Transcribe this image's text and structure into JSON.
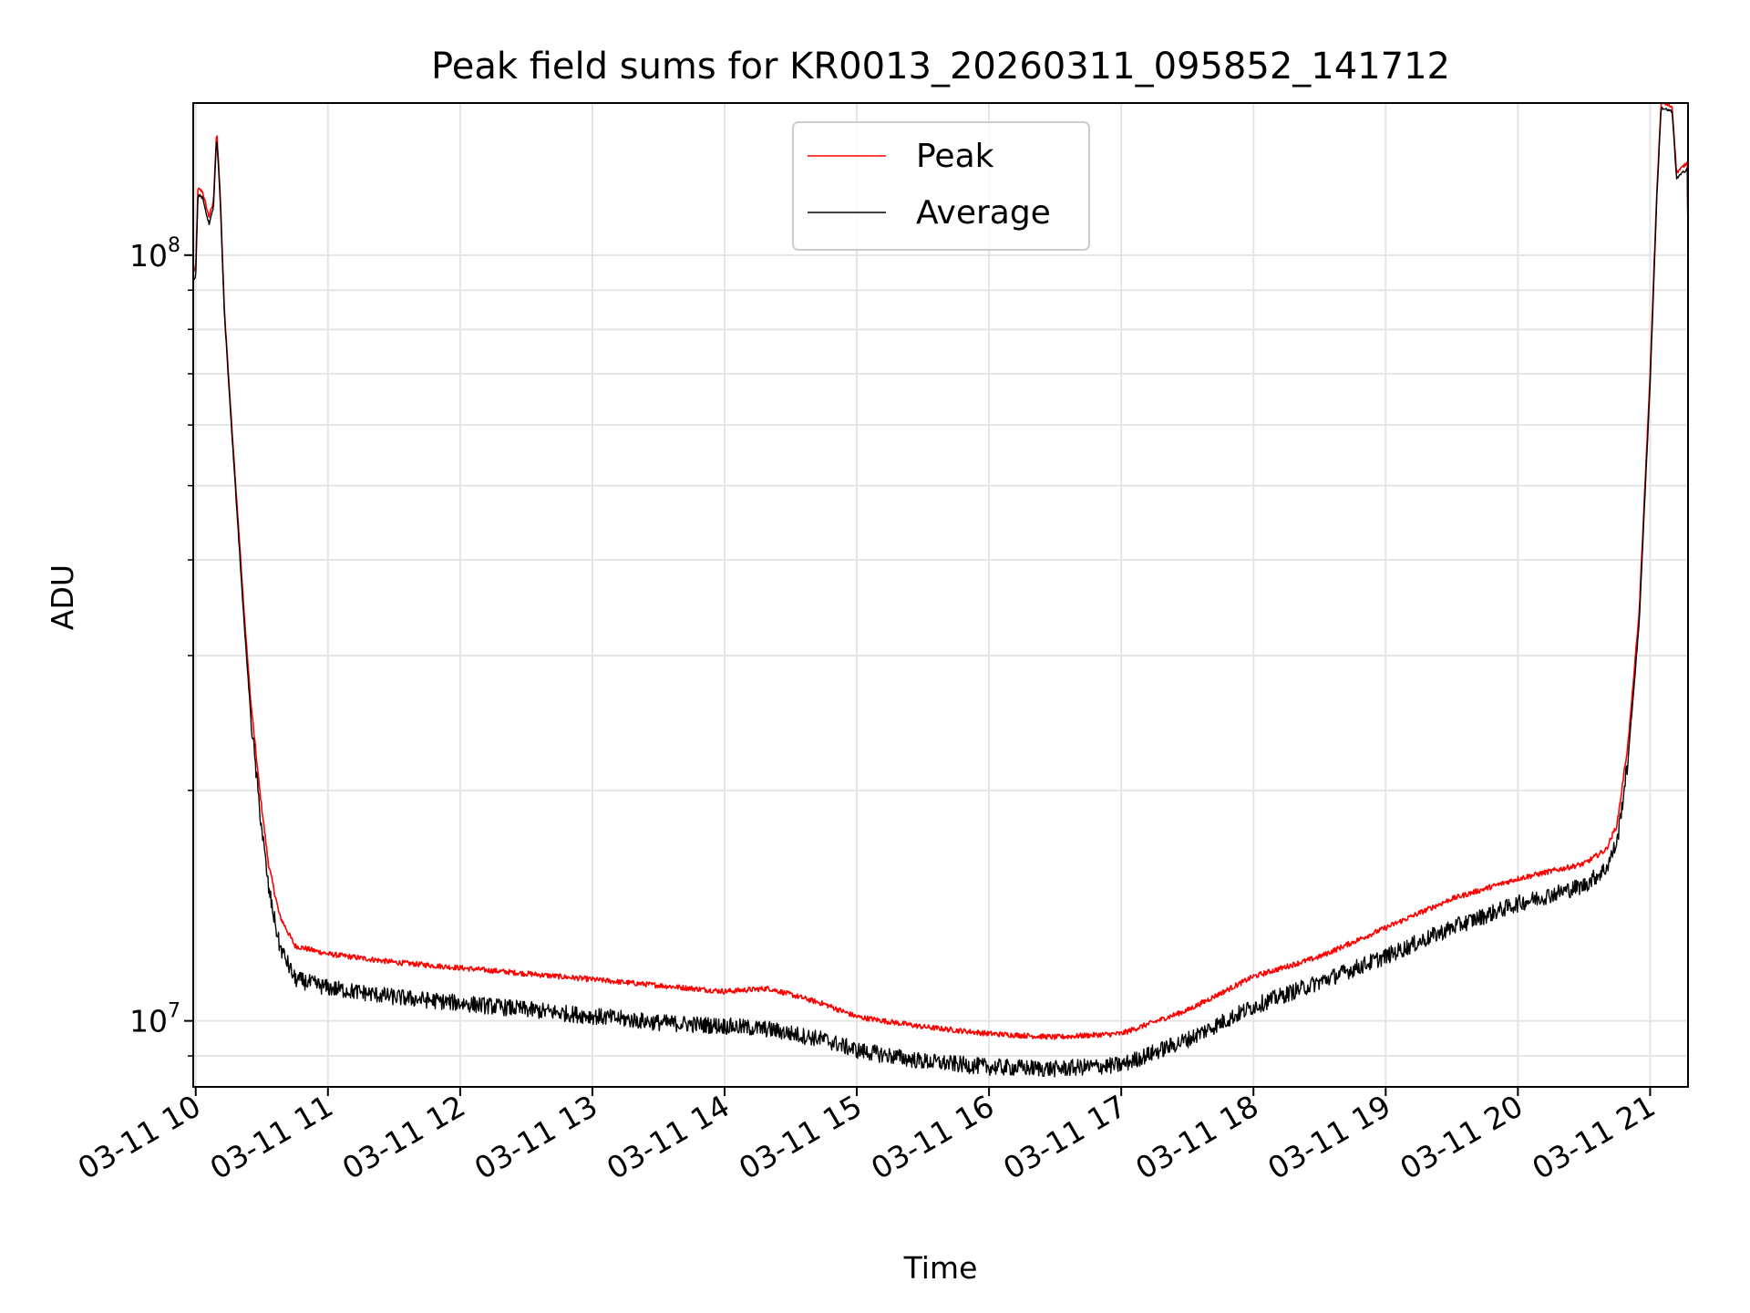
{
  "chart_data": {
    "type": "line",
    "title": "Peak field sums for KR0013_20260311_095852_141712",
    "xlabel": "Time",
    "ylabel": "ADU",
    "y_scale": "log",
    "ylim": [
      8200000,
      158000000
    ],
    "xlim": [
      "03-11 09:58:52",
      "03-11 21:17:12"
    ],
    "x_tick_labels": [
      "03-11 10",
      "03-11 11",
      "03-11 12",
      "03-11 13",
      "03-11 14",
      "03-11 15",
      "03-11 16",
      "03-11 17",
      "03-11 18",
      "03-11 19",
      "03-11 20",
      "03-11 21"
    ],
    "y_tick_labels": [
      {
        "value": 10000000,
        "base": "10",
        "exp": "7"
      },
      {
        "value": 100000000,
        "base": "10",
        "exp": "8"
      }
    ],
    "grid": true,
    "legend_position": "upper center",
    "series": [
      {
        "name": "Peak",
        "color": "#ff0000",
        "points": [
          [
            "03-11 09:58:52",
            95000000
          ],
          [
            "03-11 10:00:00",
            96000000
          ],
          [
            "03-11 10:01:00",
            122000000
          ],
          [
            "03-11 10:03:00",
            121000000
          ],
          [
            "03-11 10:06:00",
            112000000
          ],
          [
            "03-11 10:08:00",
            117000000
          ],
          [
            "03-11 10:09:30",
            145000000
          ],
          [
            "03-11 10:11:00",
            122000000
          ],
          [
            "03-11 10:13:00",
            85000000
          ],
          [
            "03-11 10:16:00",
            62000000
          ],
          [
            "03-11 10:19:00",
            46000000
          ],
          [
            "03-11 10:22:00",
            34000000
          ],
          [
            "03-11 10:25:00",
            26000000
          ],
          [
            "03-11 10:29:00",
            20000000
          ],
          [
            "03-11 10:33:00",
            16000000
          ],
          [
            "03-11 10:38:00",
            13700000
          ],
          [
            "03-11 10:45:00",
            12500000
          ],
          [
            "03-11 11:00:00",
            12200000
          ],
          [
            "03-11 11:30:00",
            11900000
          ],
          [
            "03-11 12:00:00",
            11700000
          ],
          [
            "03-11 12:30:00",
            11500000
          ],
          [
            "03-11 13:00:00",
            11300000
          ],
          [
            "03-11 13:30:00",
            11100000
          ],
          [
            "03-11 14:00:00",
            10900000
          ],
          [
            "03-11 14:20:00",
            11000000
          ],
          [
            "03-11 14:45:00",
            10500000
          ],
          [
            "03-11 15:00:00",
            10100000
          ],
          [
            "03-11 15:30:00",
            9800000
          ],
          [
            "03-11 16:00:00",
            9600000
          ],
          [
            "03-11 16:30:00",
            9500000
          ],
          [
            "03-11 17:00:00",
            9600000
          ],
          [
            "03-11 17:30:00",
            10300000
          ],
          [
            "03-11 18:00:00",
            11400000
          ],
          [
            "03-11 18:30:00",
            12100000
          ],
          [
            "03-11 19:00:00",
            13200000
          ],
          [
            "03-11 19:30:00",
            14400000
          ],
          [
            "03-11 20:00:00",
            15300000
          ],
          [
            "03-11 20:30:00",
            16000000
          ],
          [
            "03-11 20:40:00",
            16700000
          ],
          [
            "03-11 20:45:00",
            18000000
          ],
          [
            "03-11 20:50:00",
            23000000
          ],
          [
            "03-11 20:55:00",
            34000000
          ],
          [
            "03-11 21:00:00",
            70000000
          ],
          [
            "03-11 21:03:00",
            120000000
          ],
          [
            "03-11 21:05:00",
            158000000
          ],
          [
            "03-11 21:10:00",
            156000000
          ],
          [
            "03-11 21:12:00",
            128000000
          ],
          [
            "03-11 21:17:00",
            132000000
          ],
          [
            "03-11 21:17:12",
            104000000
          ]
        ]
      },
      {
        "name": "Average",
        "color": "#000000",
        "points": [
          [
            "03-11 09:58:52",
            93000000
          ],
          [
            "03-11 10:00:00",
            94000000
          ],
          [
            "03-11 10:01:00",
            120000000
          ],
          [
            "03-11 10:03:00",
            119000000
          ],
          [
            "03-11 10:06:00",
            110000000
          ],
          [
            "03-11 10:08:00",
            115000000
          ],
          [
            "03-11 10:09:30",
            143000000
          ],
          [
            "03-11 10:11:00",
            120000000
          ],
          [
            "03-11 10:13:00",
            84000000
          ],
          [
            "03-11 10:16:00",
            61000000
          ],
          [
            "03-11 10:19:00",
            45000000
          ],
          [
            "03-11 10:22:00",
            33000000
          ],
          [
            "03-11 10:25:00",
            25000000
          ],
          [
            "03-11 10:29:00",
            19000000
          ],
          [
            "03-11 10:33:00",
            15000000
          ],
          [
            "03-11 10:38:00",
            12600000
          ],
          [
            "03-11 10:45:00",
            11400000
          ],
          [
            "03-11 11:00:00",
            11100000
          ],
          [
            "03-11 11:30:00",
            10800000
          ],
          [
            "03-11 12:00:00",
            10600000
          ],
          [
            "03-11 12:30:00",
            10400000
          ],
          [
            "03-11 13:00:00",
            10200000
          ],
          [
            "03-11 13:30:00",
            10000000
          ],
          [
            "03-11 14:00:00",
            9900000
          ],
          [
            "03-11 14:20:00",
            9800000
          ],
          [
            "03-11 14:45:00",
            9500000
          ],
          [
            "03-11 15:00:00",
            9200000
          ],
          [
            "03-11 15:30:00",
            8900000
          ],
          [
            "03-11 16:00:00",
            8750000
          ],
          [
            "03-11 16:30:00",
            8700000
          ],
          [
            "03-11 17:00:00",
            8800000
          ],
          [
            "03-11 17:30:00",
            9500000
          ],
          [
            "03-11 18:00:00",
            10500000
          ],
          [
            "03-11 18:30:00",
            11300000
          ],
          [
            "03-11 19:00:00",
            12200000
          ],
          [
            "03-11 19:30:00",
            13300000
          ],
          [
            "03-11 20:00:00",
            14300000
          ],
          [
            "03-11 20:30:00",
            15100000
          ],
          [
            "03-11 20:40:00",
            15900000
          ],
          [
            "03-11 20:45:00",
            17200000
          ],
          [
            "03-11 20:50:00",
            22000000
          ],
          [
            "03-11 20:55:00",
            33000000
          ],
          [
            "03-11 21:00:00",
            68000000
          ],
          [
            "03-11 21:03:00",
            118000000
          ],
          [
            "03-11 21:05:00",
            156000000
          ],
          [
            "03-11 21:10:00",
            154000000
          ],
          [
            "03-11 21:12:00",
            126000000
          ],
          [
            "03-11 21:17:00",
            130000000
          ],
          [
            "03-11 21:17:12",
            102000000
          ]
        ]
      }
    ]
  }
}
